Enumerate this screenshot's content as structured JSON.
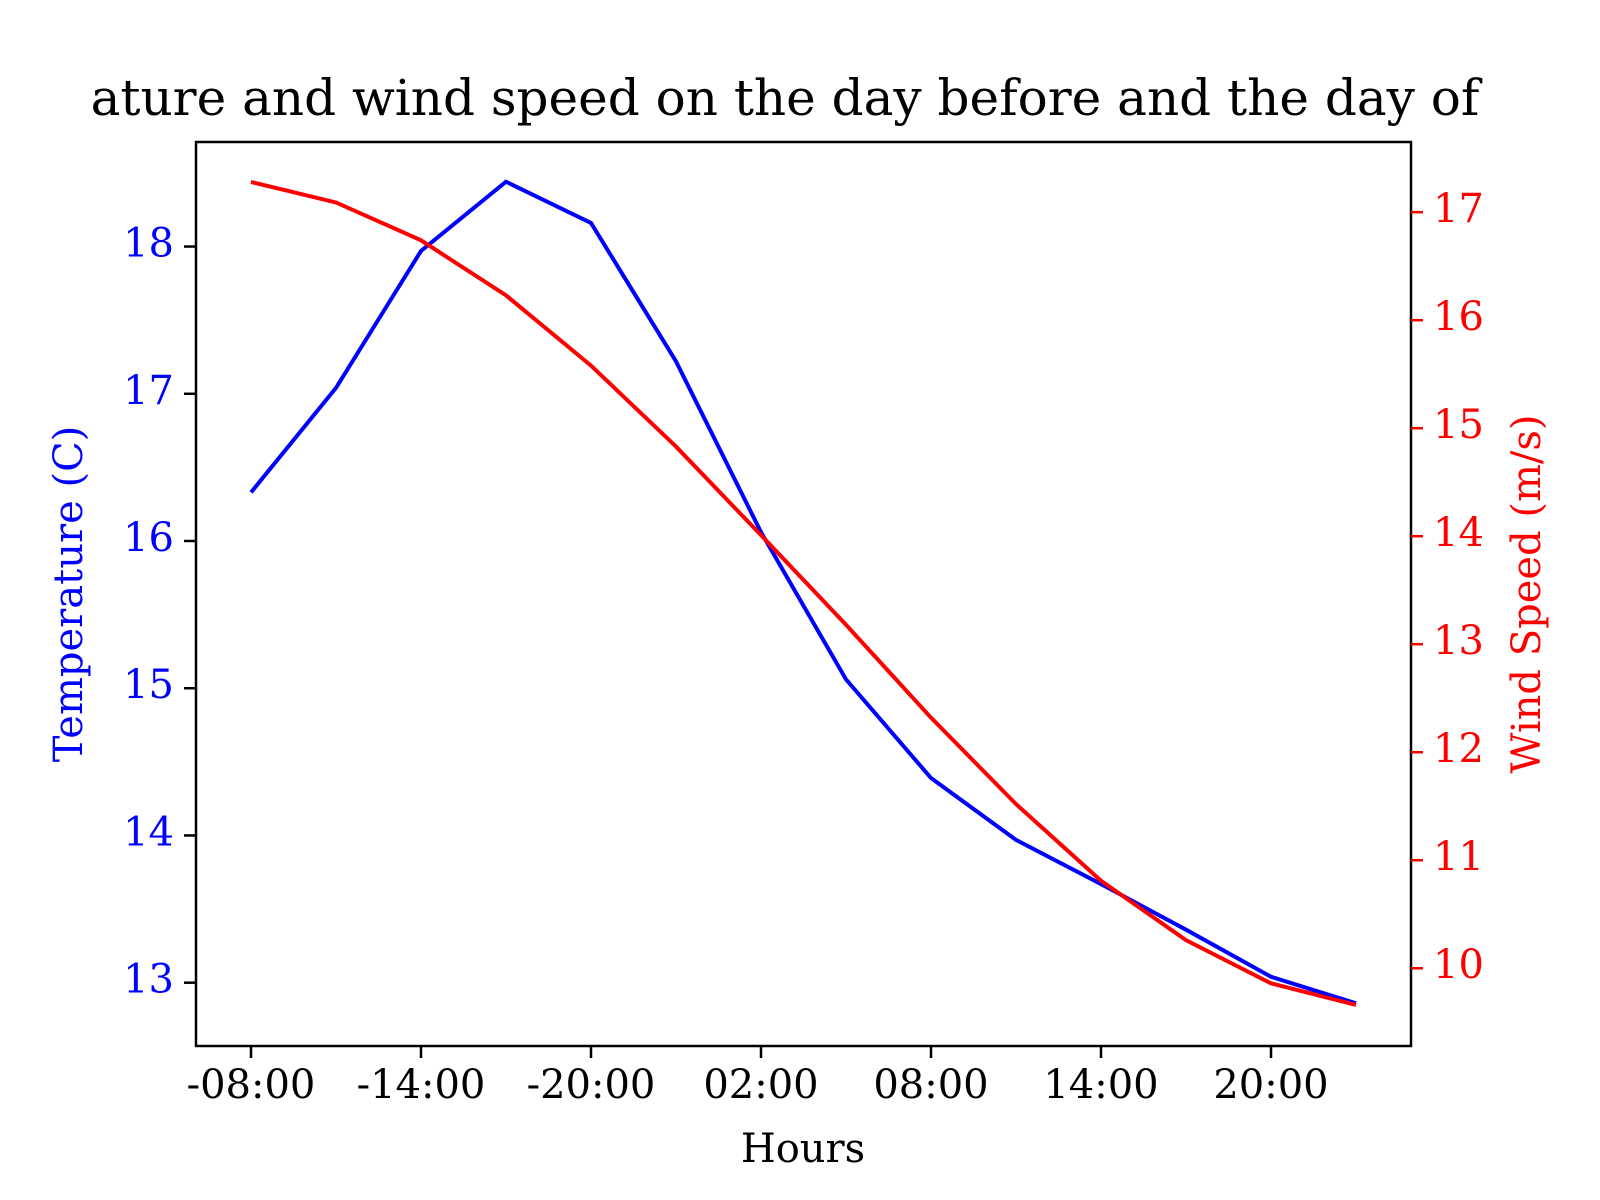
{
  "chart_data": {
    "type": "line",
    "title": "ature and wind speed on the day before and the day of",
    "xlabel": "Hours",
    "ylabel": "Temperature (C)",
    "y2label": "Wind Speed (m/s)",
    "categories": [
      "-08:00",
      null,
      "-14:00",
      null,
      "-20:00",
      null,
      "02:00",
      null,
      "08:00",
      null,
      "14:00",
      null,
      "20:00",
      null
    ],
    "series": [
      {
        "name": "Temperature (C)",
        "color": "#0000ff",
        "axis": "y",
        "values": [
          16.33,
          17.04,
          17.97,
          18.44,
          18.16,
          17.22,
          16.06,
          15.06,
          14.39,
          13.97,
          13.67,
          13.36,
          13.04,
          12.86
        ]
      },
      {
        "name": "Wind Speed (m/s)",
        "color": "#ff0000",
        "axis": "y2",
        "values": [
          17.28,
          17.09,
          16.74,
          16.23,
          15.58,
          14.83,
          14.01,
          13.18,
          12.32,
          11.52,
          10.81,
          10.26,
          9.86,
          9.66
        ]
      }
    ],
    "ylim": [
      12.57,
      18.71
    ],
    "yticks": [
      13,
      14,
      15,
      16,
      17,
      18
    ],
    "y2lim": [
      9.28,
      17.65
    ],
    "y2ticks": [
      10,
      11,
      12,
      13,
      14,
      15,
      16,
      17
    ]
  }
}
